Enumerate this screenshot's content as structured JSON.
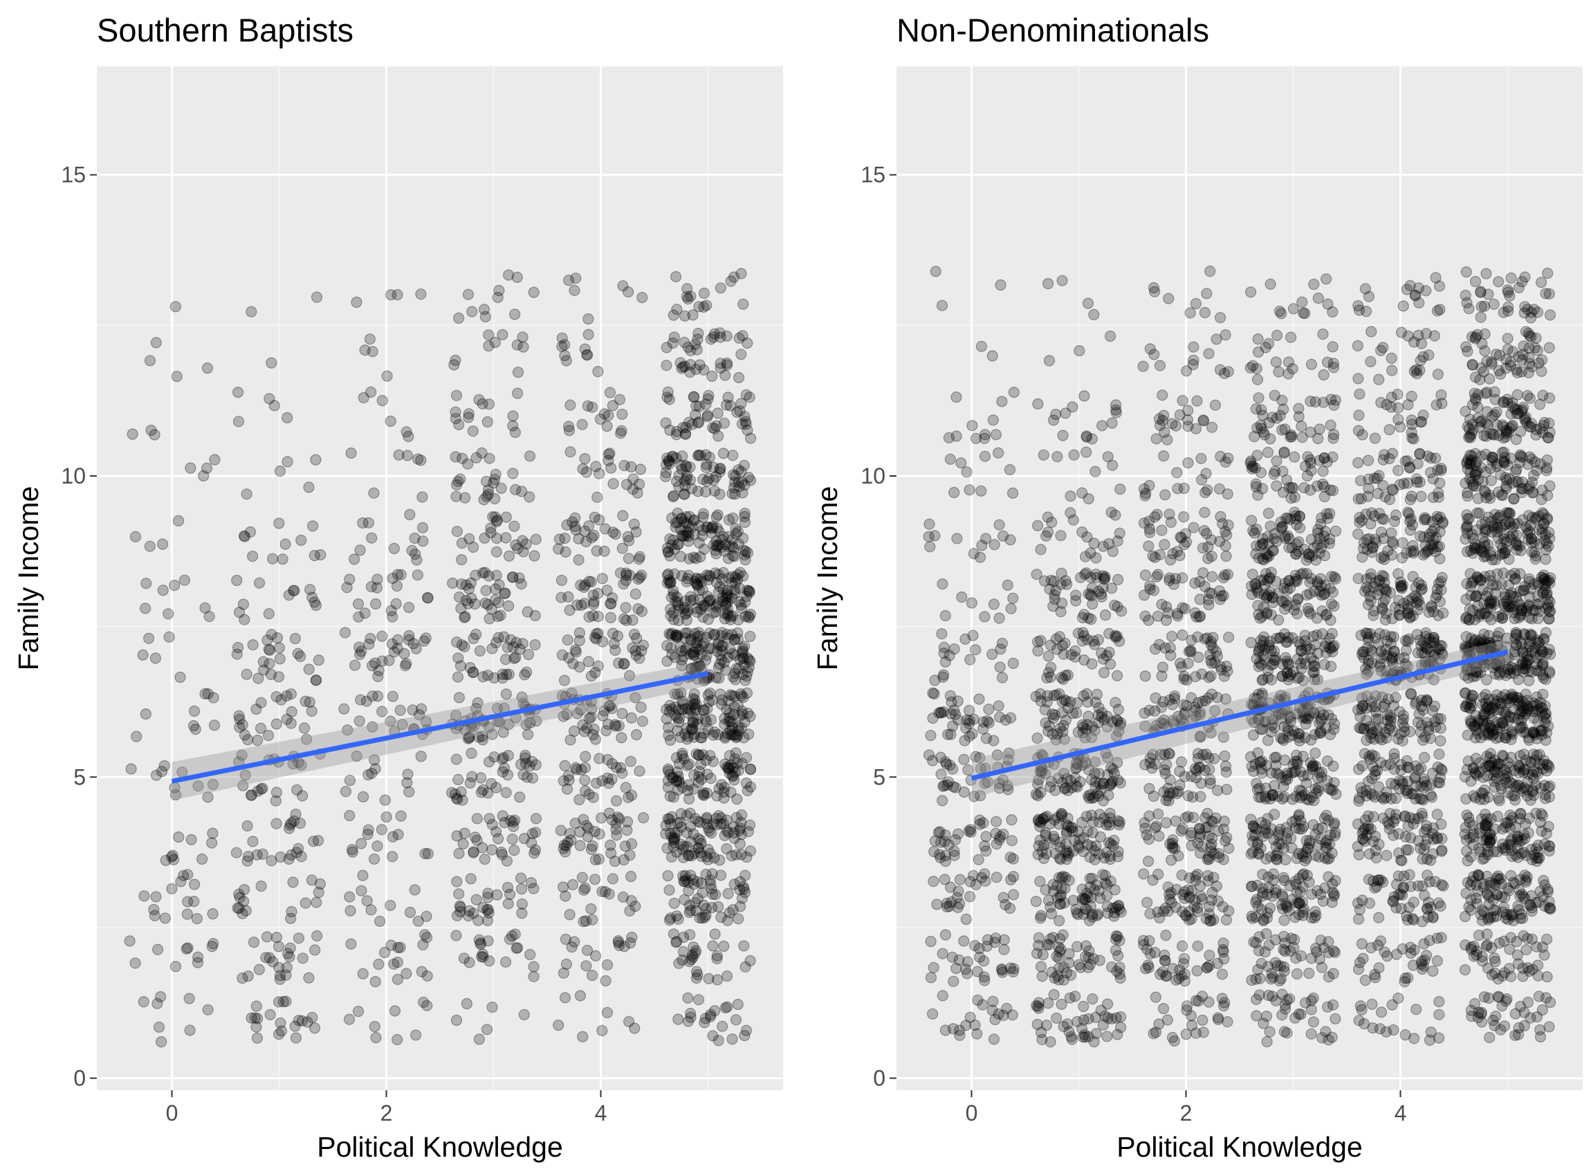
{
  "chart_data": [
    {
      "type": "scatter",
      "title": "Southern Baptists",
      "xlabel": "Political Knowledge",
      "ylabel": "Family Income",
      "xlim": [
        -0.7,
        5.7
      ],
      "ylim": [
        -0.2,
        16.8
      ],
      "x_ticks": [
        "0",
        "2",
        "4"
      ],
      "y_ticks": [
        "0",
        "5",
        "10",
        "15"
      ],
      "grid": true,
      "jitter": true,
      "point_color": "#000000",
      "point_alpha": 0.25,
      "counts_by_knowledge": [
        90,
        190,
        170,
        330,
        320,
        880
      ],
      "income_levels": [
        1,
        2,
        3,
        4,
        5,
        6,
        7,
        8,
        9,
        10,
        11,
        12,
        13
      ],
      "fit": {
        "x": [
          0,
          5
        ],
        "y": [
          4.93,
          6.72
        ],
        "color": "#3366ff",
        "band": "#999999"
      }
    },
    {
      "type": "scatter",
      "title": "Non-Denominationals",
      "xlabel": "Political Knowledge",
      "ylabel": "Family Income",
      "xlim": [
        -0.7,
        5.7
      ],
      "ylim": [
        -0.2,
        16.8
      ],
      "x_ticks": [
        "0",
        "2",
        "4"
      ],
      "y_ticks": [
        "0",
        "5",
        "10",
        "15"
      ],
      "grid": true,
      "jitter": true,
      "point_color": "#000000",
      "point_alpha": 0.25,
      "counts_by_knowledge": [
        260,
        540,
        480,
        820,
        720,
        1250
      ],
      "income_levels": [
        1,
        2,
        3,
        4,
        5,
        6,
        7,
        8,
        9,
        10,
        11,
        12,
        13
      ],
      "fit": {
        "x": [
          0,
          5
        ],
        "y": [
          4.98,
          7.08
        ],
        "color": "#3366ff",
        "band": "#999999"
      }
    }
  ]
}
